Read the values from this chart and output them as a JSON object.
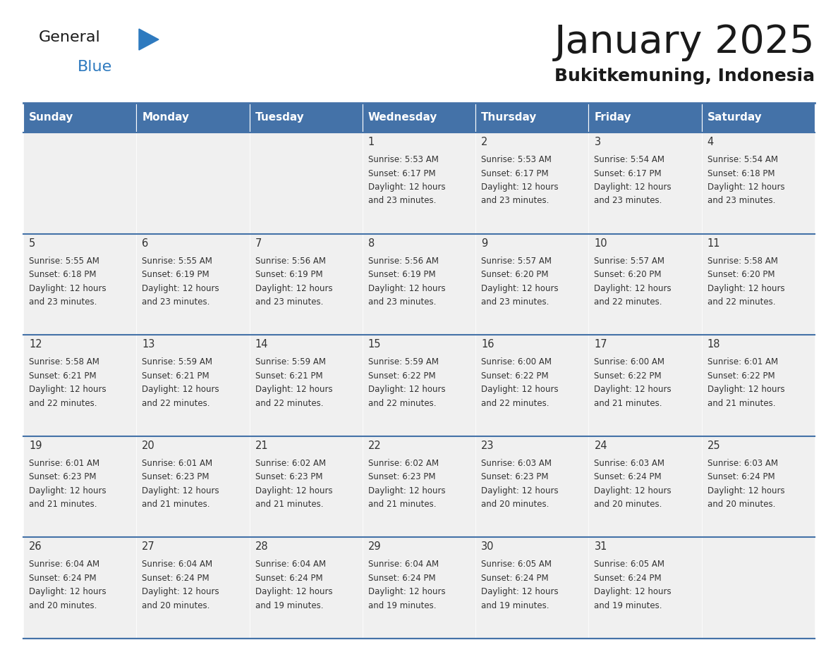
{
  "title": "January 2025",
  "subtitle": "Bukitkemuning, Indonesia",
  "days_of_week": [
    "Sunday",
    "Monday",
    "Tuesday",
    "Wednesday",
    "Thursday",
    "Friday",
    "Saturday"
  ],
  "header_bg": "#4472a8",
  "header_text_color": "#ffffff",
  "cell_bg": "#f0f0f0",
  "cell_border_color": "#4472a8",
  "title_color": "#1a1a1a",
  "subtitle_color": "#1a1a1a",
  "text_color": "#333333",
  "logo_general_color": "#1a1a1a",
  "logo_blue_color": "#2e7abf",
  "logo_triangle_color": "#2e7abf",
  "calendar": [
    [
      {
        "day": null,
        "sunrise": null,
        "sunset": null,
        "daylight_hours": null,
        "daylight_mins": null
      },
      {
        "day": null,
        "sunrise": null,
        "sunset": null,
        "daylight_hours": null,
        "daylight_mins": null
      },
      {
        "day": null,
        "sunrise": null,
        "sunset": null,
        "daylight_hours": null,
        "daylight_mins": null
      },
      {
        "day": 1,
        "sunrise": "5:53 AM",
        "sunset": "6:17 PM",
        "daylight_hours": 12,
        "daylight_mins": "23 minutes."
      },
      {
        "day": 2,
        "sunrise": "5:53 AM",
        "sunset": "6:17 PM",
        "daylight_hours": 12,
        "daylight_mins": "23 minutes."
      },
      {
        "day": 3,
        "sunrise": "5:54 AM",
        "sunset": "6:17 PM",
        "daylight_hours": 12,
        "daylight_mins": "23 minutes."
      },
      {
        "day": 4,
        "sunrise": "5:54 AM",
        "sunset": "6:18 PM",
        "daylight_hours": 12,
        "daylight_mins": "23 minutes."
      }
    ],
    [
      {
        "day": 5,
        "sunrise": "5:55 AM",
        "sunset": "6:18 PM",
        "daylight_hours": 12,
        "daylight_mins": "23 minutes."
      },
      {
        "day": 6,
        "sunrise": "5:55 AM",
        "sunset": "6:19 PM",
        "daylight_hours": 12,
        "daylight_mins": "23 minutes."
      },
      {
        "day": 7,
        "sunrise": "5:56 AM",
        "sunset": "6:19 PM",
        "daylight_hours": 12,
        "daylight_mins": "23 minutes."
      },
      {
        "day": 8,
        "sunrise": "5:56 AM",
        "sunset": "6:19 PM",
        "daylight_hours": 12,
        "daylight_mins": "23 minutes."
      },
      {
        "day": 9,
        "sunrise": "5:57 AM",
        "sunset": "6:20 PM",
        "daylight_hours": 12,
        "daylight_mins": "23 minutes."
      },
      {
        "day": 10,
        "sunrise": "5:57 AM",
        "sunset": "6:20 PM",
        "daylight_hours": 12,
        "daylight_mins": "22 minutes."
      },
      {
        "day": 11,
        "sunrise": "5:58 AM",
        "sunset": "6:20 PM",
        "daylight_hours": 12,
        "daylight_mins": "22 minutes."
      }
    ],
    [
      {
        "day": 12,
        "sunrise": "5:58 AM",
        "sunset": "6:21 PM",
        "daylight_hours": 12,
        "daylight_mins": "22 minutes."
      },
      {
        "day": 13,
        "sunrise": "5:59 AM",
        "sunset": "6:21 PM",
        "daylight_hours": 12,
        "daylight_mins": "22 minutes."
      },
      {
        "day": 14,
        "sunrise": "5:59 AM",
        "sunset": "6:21 PM",
        "daylight_hours": 12,
        "daylight_mins": "22 minutes."
      },
      {
        "day": 15,
        "sunrise": "5:59 AM",
        "sunset": "6:22 PM",
        "daylight_hours": 12,
        "daylight_mins": "22 minutes."
      },
      {
        "day": 16,
        "sunrise": "6:00 AM",
        "sunset": "6:22 PM",
        "daylight_hours": 12,
        "daylight_mins": "22 minutes."
      },
      {
        "day": 17,
        "sunrise": "6:00 AM",
        "sunset": "6:22 PM",
        "daylight_hours": 12,
        "daylight_mins": "21 minutes."
      },
      {
        "day": 18,
        "sunrise": "6:01 AM",
        "sunset": "6:22 PM",
        "daylight_hours": 12,
        "daylight_mins": "21 minutes."
      }
    ],
    [
      {
        "day": 19,
        "sunrise": "6:01 AM",
        "sunset": "6:23 PM",
        "daylight_hours": 12,
        "daylight_mins": "21 minutes."
      },
      {
        "day": 20,
        "sunrise": "6:01 AM",
        "sunset": "6:23 PM",
        "daylight_hours": 12,
        "daylight_mins": "21 minutes."
      },
      {
        "day": 21,
        "sunrise": "6:02 AM",
        "sunset": "6:23 PM",
        "daylight_hours": 12,
        "daylight_mins": "21 minutes."
      },
      {
        "day": 22,
        "sunrise": "6:02 AM",
        "sunset": "6:23 PM",
        "daylight_hours": 12,
        "daylight_mins": "21 minutes."
      },
      {
        "day": 23,
        "sunrise": "6:03 AM",
        "sunset": "6:23 PM",
        "daylight_hours": 12,
        "daylight_mins": "20 minutes."
      },
      {
        "day": 24,
        "sunrise": "6:03 AM",
        "sunset": "6:24 PM",
        "daylight_hours": 12,
        "daylight_mins": "20 minutes."
      },
      {
        "day": 25,
        "sunrise": "6:03 AM",
        "sunset": "6:24 PM",
        "daylight_hours": 12,
        "daylight_mins": "20 minutes."
      }
    ],
    [
      {
        "day": 26,
        "sunrise": "6:04 AM",
        "sunset": "6:24 PM",
        "daylight_hours": 12,
        "daylight_mins": "20 minutes."
      },
      {
        "day": 27,
        "sunrise": "6:04 AM",
        "sunset": "6:24 PM",
        "daylight_hours": 12,
        "daylight_mins": "20 minutes."
      },
      {
        "day": 28,
        "sunrise": "6:04 AM",
        "sunset": "6:24 PM",
        "daylight_hours": 12,
        "daylight_mins": "19 minutes."
      },
      {
        "day": 29,
        "sunrise": "6:04 AM",
        "sunset": "6:24 PM",
        "daylight_hours": 12,
        "daylight_mins": "19 minutes."
      },
      {
        "day": 30,
        "sunrise": "6:05 AM",
        "sunset": "6:24 PM",
        "daylight_hours": 12,
        "daylight_mins": "19 minutes."
      },
      {
        "day": 31,
        "sunrise": "6:05 AM",
        "sunset": "6:24 PM",
        "daylight_hours": 12,
        "daylight_mins": "19 minutes."
      },
      {
        "day": null,
        "sunrise": null,
        "sunset": null,
        "daylight_hours": null,
        "daylight_mins": null
      }
    ]
  ]
}
